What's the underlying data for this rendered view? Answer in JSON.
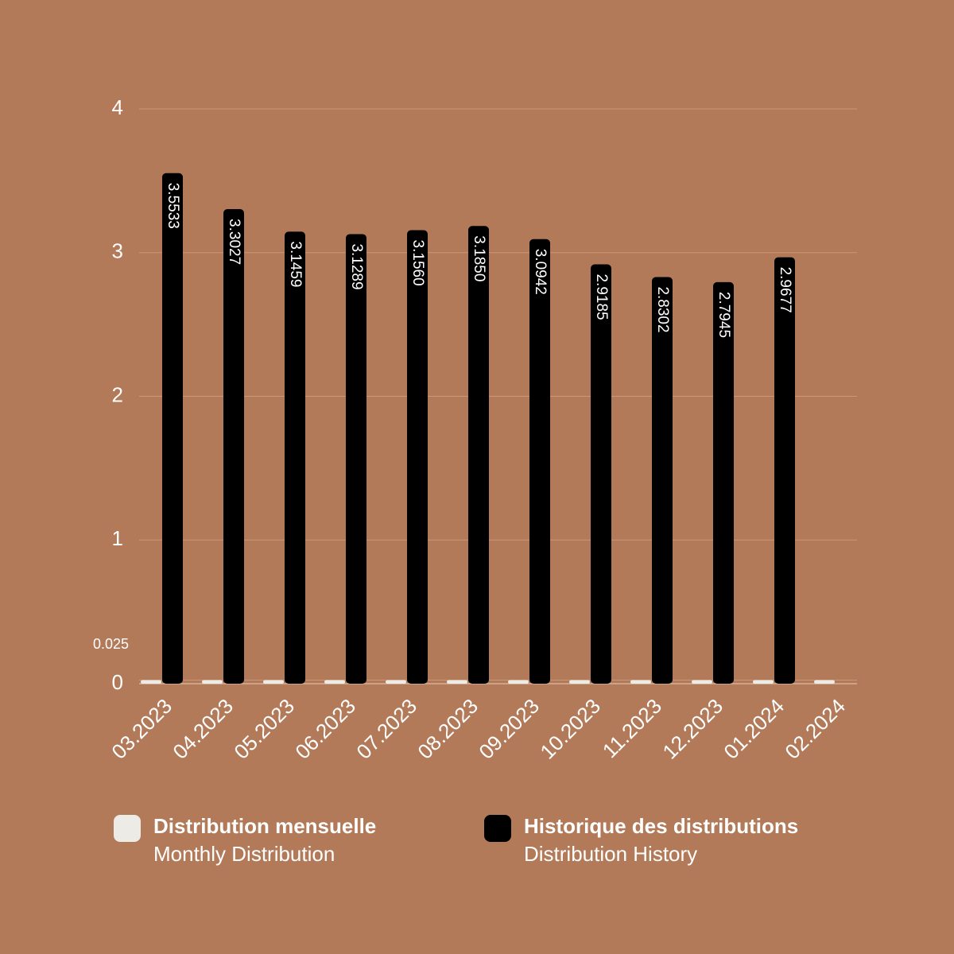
{
  "chart_data": {
    "type": "bar",
    "categories": [
      "03.2023",
      "04.2023",
      "05.2023",
      "06.2023",
      "07.2023",
      "08.2023",
      "09.2023",
      "10.2023",
      "11.2023",
      "12.2023",
      "01.2024",
      "02.2024"
    ],
    "series": [
      {
        "name": "Distribution mensuelle",
        "subname": "Monthly Distribution",
        "color": "#ecebe5",
        "values": [
          0.025,
          0.025,
          0.025,
          0.025,
          0.025,
          0.025,
          0.025,
          0.025,
          0.025,
          0.025,
          0.025,
          0.025
        ]
      },
      {
        "name": "Historique des distributions",
        "subname": "Distribution History",
        "color": "#000000",
        "values": [
          3.5533,
          3.3027,
          3.1459,
          3.1289,
          3.156,
          3.185,
          3.0942,
          2.9185,
          2.8302,
          2.7945,
          2.9677,
          null
        ],
        "value_labels": [
          "3.5533",
          "3.3027",
          "3.1459",
          "3.1289",
          "3.1560",
          "3.1850",
          "3.0942",
          "2.9185",
          "2.8302",
          "2.7945",
          "2.9677",
          null
        ]
      }
    ],
    "ylim": [
      0,
      4
    ],
    "yticks": [
      0,
      0.025,
      1,
      2,
      3,
      4
    ],
    "grid": true
  }
}
